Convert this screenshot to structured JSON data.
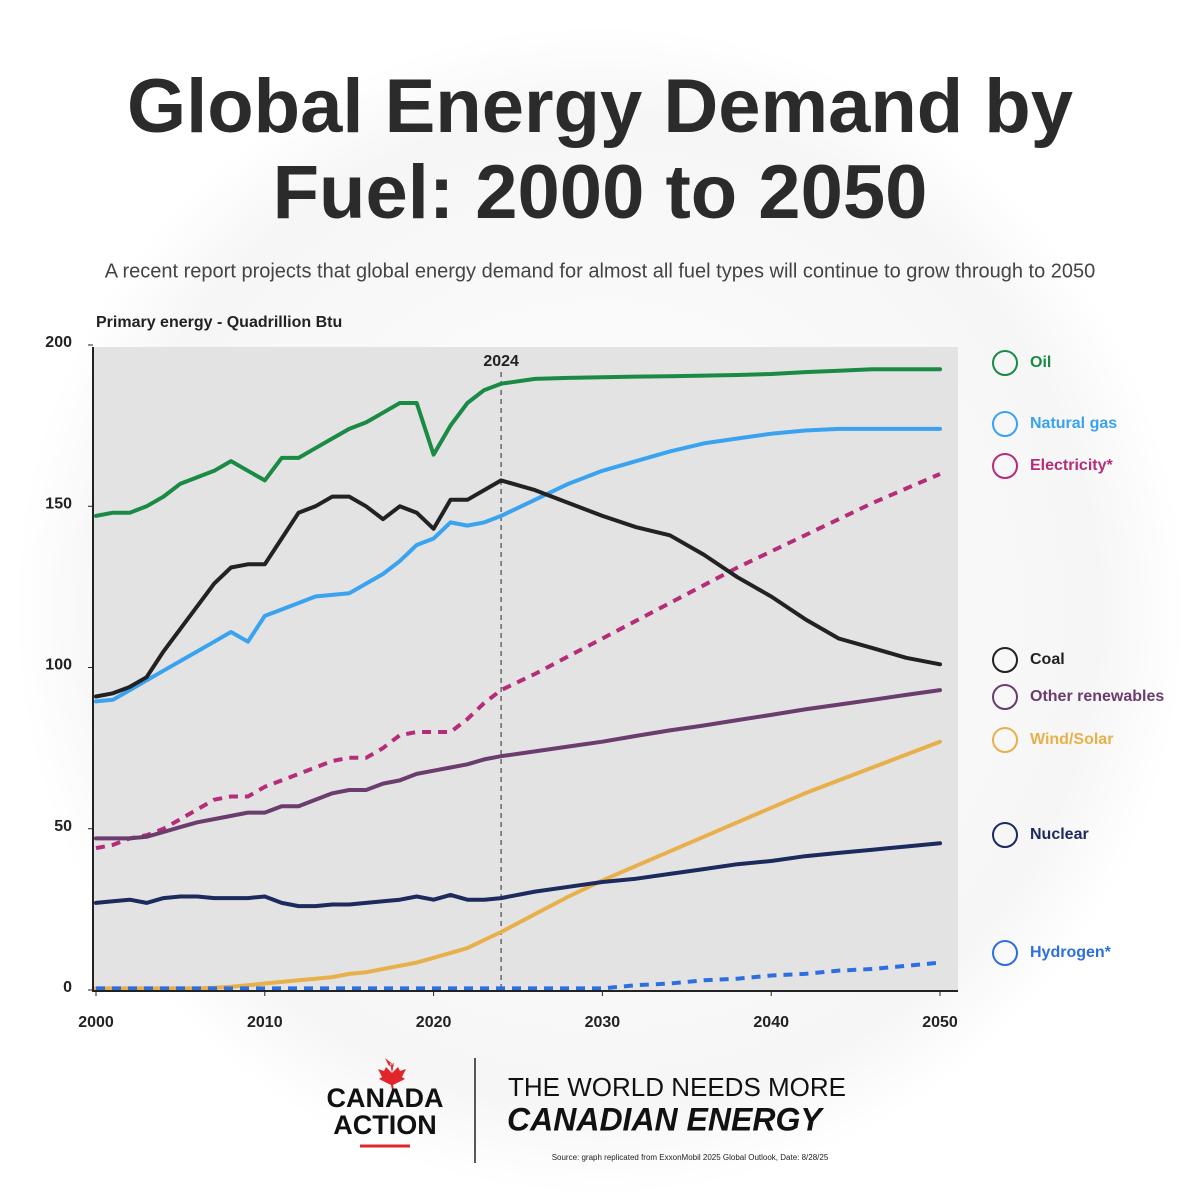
{
  "chart_data": {
    "type": "line",
    "title": [
      "Global Energy Demand by",
      "Fuel: 2000 to 2050"
    ],
    "subtitle": "A recent report projects that global energy demand for almost all fuel types will continue to grow through to 2050",
    "y_label": "Primary energy - Quadrillion Btu",
    "marker_x": 2024,
    "xlim": [
      2000,
      2050
    ],
    "xticks": [
      2000,
      2010,
      2020,
      2030,
      2040,
      2050
    ],
    "ylim": [
      0,
      200
    ],
    "yticks": [
      0,
      50,
      100,
      150,
      200
    ],
    "x": [
      2000,
      2001,
      2002,
      2003,
      2004,
      2005,
      2006,
      2007,
      2008,
      2009,
      2010,
      2011,
      2012,
      2013,
      2014,
      2015,
      2016,
      2017,
      2018,
      2019,
      2020,
      2021,
      2022,
      2023,
      2024,
      2026,
      2028,
      2030,
      2032,
      2034,
      2036,
      2038,
      2040,
      2042,
      2044,
      2046,
      2048,
      2050
    ],
    "series": [
      {
        "name": "Oil",
        "color": "#1a8a45",
        "dash": false,
        "values": [
          147,
          148,
          148,
          150,
          153,
          157,
          159,
          161,
          164,
          161,
          158,
          165,
          165,
          168,
          171,
          174,
          176,
          179,
          182,
          182,
          166,
          175,
          182,
          186,
          188,
          189.5,
          189.8,
          190,
          190.2,
          190.3,
          190.5,
          190.7,
          191,
          191.6,
          192,
          192.5,
          192.5,
          192.5
        ]
      },
      {
        "name": "Natural gas",
        "color": "#3aa3f0",
        "dash": false,
        "values": [
          89.5,
          90,
          93,
          96,
          99,
          102,
          105,
          108,
          111,
          108,
          116,
          118,
          120,
          122,
          122.5,
          123,
          126,
          129,
          133,
          138,
          140,
          145,
          144,
          145,
          147,
          152,
          157,
          161,
          164,
          167,
          169.5,
          171,
          172.5,
          173.5,
          174,
          174,
          174,
          174
        ]
      },
      {
        "name": "Electricity*",
        "color": "#b52d78",
        "dash": true,
        "values": [
          44,
          45,
          47,
          48,
          50,
          53,
          56,
          59,
          60,
          60,
          63,
          65,
          67,
          69,
          71,
          72,
          72,
          75,
          79,
          80,
          80,
          80,
          84,
          89,
          93,
          98,
          103.5,
          109,
          114.5,
          120,
          125.5,
          131,
          136,
          141,
          146,
          151,
          155.5,
          160
        ]
      },
      {
        "name": "Coal",
        "color": "#222222",
        "dash": false,
        "values": [
          91,
          92,
          94,
          97,
          105,
          112,
          119,
          126,
          131,
          132,
          132,
          140,
          148,
          150,
          153,
          153,
          150,
          146,
          150,
          148,
          143,
          152,
          152,
          155,
          158,
          155,
          151,
          147,
          143.5,
          141,
          135,
          128,
          122,
          115,
          109,
          106,
          103,
          101
        ]
      },
      {
        "name": "Other renewables",
        "color": "#6b3c6e",
        "dash": false,
        "values": [
          47,
          47,
          47,
          47.5,
          49,
          50.5,
          52,
          53,
          54,
          55,
          55,
          57,
          57,
          59,
          61,
          62,
          62,
          64,
          65,
          67,
          68,
          69,
          70,
          71.5,
          72.5,
          74,
          75.5,
          77,
          78.8,
          80.5,
          82,
          83.7,
          85.3,
          87,
          88.5,
          90,
          91.5,
          93
        ]
      },
      {
        "name": "Wind/Solar",
        "color": "#e8b04a",
        "dash": false,
        "values": [
          0.5,
          0.5,
          0.5,
          0.5,
          0.5,
          0.5,
          0.5,
          0.7,
          1,
          1.5,
          2,
          2.5,
          3,
          3.5,
          4,
          5,
          5.5,
          6.5,
          7.5,
          8.5,
          10,
          11.5,
          13,
          15.5,
          18,
          23.5,
          29,
          34,
          38.5,
          43,
          47.5,
          52,
          56.5,
          61,
          65,
          69,
          73,
          77
        ]
      },
      {
        "name": "Nuclear",
        "color": "#1c2a5e",
        "dash": false,
        "values": [
          27,
          27.5,
          28,
          27,
          28.5,
          29,
          29,
          28.5,
          28.5,
          28.5,
          29,
          27,
          26,
          26,
          26.5,
          26.5,
          27,
          27.5,
          28,
          29,
          28,
          29.5,
          28,
          28,
          28.5,
          30.5,
          32,
          33.5,
          34.5,
          36,
          37.5,
          39,
          40,
          41.5,
          42.5,
          43.5,
          44.5,
          45.5
        ]
      },
      {
        "name": "Hydrogen*",
        "color": "#2e6fe0",
        "dash": true,
        "values": [
          0.5,
          0.5,
          0.5,
          0.5,
          0.5,
          0.5,
          0.5,
          0.5,
          0.5,
          0.5,
          0.5,
          0.5,
          0.5,
          0.5,
          0.5,
          0.5,
          0.5,
          0.5,
          0.5,
          0.5,
          0.5,
          0.5,
          0.5,
          0.5,
          0.5,
          0.5,
          0.5,
          0.5,
          1.5,
          2,
          3,
          3.5,
          4.5,
          5,
          6,
          6.5,
          7.5,
          8.5
        ]
      }
    ]
  },
  "footer": {
    "logo": [
      "CANADA",
      "ACTION"
    ],
    "tagline": [
      "THE WORLD NEEDS MORE",
      "CANADIAN ENERGY"
    ],
    "source": "Source: graph replicated from ExxonMobil 2025 Global Outlook, Date: 8/28/25"
  }
}
